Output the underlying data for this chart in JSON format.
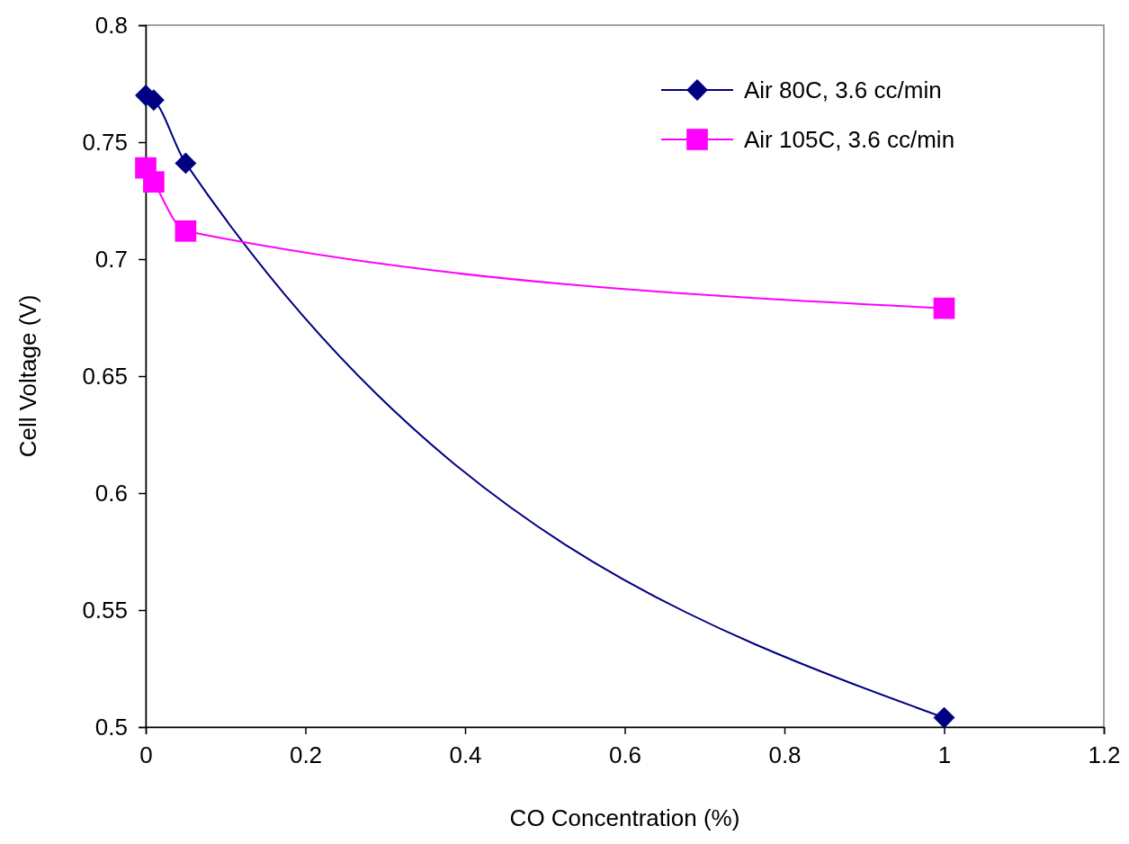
{
  "chart_data": {
    "type": "line",
    "xlabel": "CO Concentration (%)",
    "ylabel": "Cell Voltage (V)",
    "x": [
      0,
      0.01,
      0.05,
      1
    ],
    "series": [
      {
        "name": "Air 80C, 3.6 cc/min",
        "color": "#000080",
        "marker": "diamond",
        "values": [
          0.77,
          0.768,
          0.741,
          0.504
        ]
      },
      {
        "name": "Air 105C, 3.6 cc/min",
        "color": "#ff00ff",
        "marker": "square",
        "values": [
          0.739,
          0.733,
          0.712,
          0.679
        ]
      }
    ],
    "xlim": [
      0,
      1.2
    ],
    "xticks": [
      0,
      0.2,
      0.4,
      0.6,
      0.8,
      1,
      1.2
    ],
    "ylim": [
      0.5,
      0.8
    ],
    "yticks": [
      0.5,
      0.55,
      0.6,
      0.65,
      0.7,
      0.75,
      0.8
    ],
    "grid": false,
    "legend": "top right",
    "line_style": "solid"
  }
}
